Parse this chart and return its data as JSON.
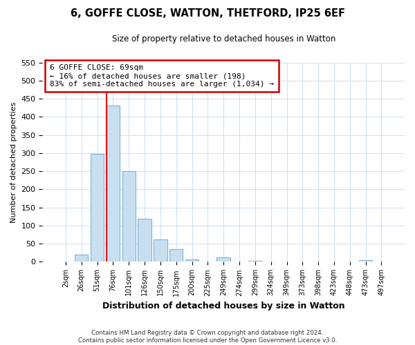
{
  "title": "6, GOFFE CLOSE, WATTON, THETFORD, IP25 6EF",
  "subtitle": "Size of property relative to detached houses in Watton",
  "xlabel": "Distribution of detached houses by size in Watton",
  "ylabel": "Number of detached properties",
  "bar_labels": [
    "2sqm",
    "26sqm",
    "51sqm",
    "76sqm",
    "101sqm",
    "126sqm",
    "150sqm",
    "175sqm",
    "200sqm",
    "225sqm",
    "249sqm",
    "274sqm",
    "299sqm",
    "324sqm",
    "349sqm",
    "373sqm",
    "398sqm",
    "423sqm",
    "448sqm",
    "473sqm",
    "497sqm"
  ],
  "bar_values": [
    0,
    20,
    297,
    432,
    251,
    119,
    62,
    35,
    7,
    0,
    12,
    0,
    2,
    0,
    0,
    0,
    0,
    0,
    0,
    5,
    0
  ],
  "bar_color": "#c8dff0",
  "bar_edge_color": "#7ab4d4",
  "annotation_text_line1": "6 GOFFE CLOSE: 69sqm",
  "annotation_text_line2": "← 16% of detached houses are smaller (198)",
  "annotation_text_line3": "83% of semi-detached houses are larger (1,034) →",
  "red_line_bar_index": 2,
  "ylim": [
    0,
    550
  ],
  "yticks": [
    0,
    50,
    100,
    150,
    200,
    250,
    300,
    350,
    400,
    450,
    500,
    550
  ],
  "footer_line1": "Contains HM Land Registry data © Crown copyright and database right 2024.",
  "footer_line2": "Contains public sector information licensed under the Open Government Licence v3.0.",
  "bg_color": "#ffffff",
  "grid_color": "#ccdff0",
  "box_edge_color": "#cc0000"
}
